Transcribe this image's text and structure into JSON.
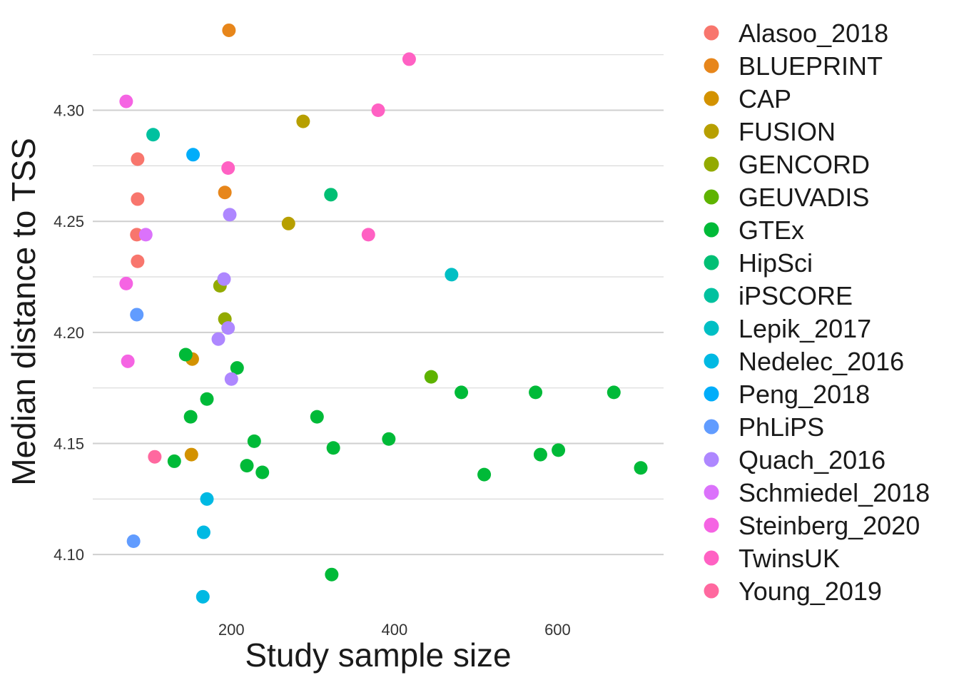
{
  "chart_data": {
    "type": "scatter",
    "xlabel": "Study sample size",
    "ylabel": "Median distance to TSS",
    "xlim": [
      30,
      730
    ],
    "ylim": [
      4.075,
      4.34
    ],
    "x_ticks": [
      200,
      400,
      600
    ],
    "x_tick_labels": [
      "200",
      "400",
      "600"
    ],
    "y_ticks": [
      4.1,
      4.15,
      4.2,
      4.25,
      4.3
    ],
    "y_tick_labels": [
      "4.10",
      "4.15",
      "4.20",
      "4.25",
      "4.30"
    ],
    "legend_position": "right",
    "grid": true,
    "series": [
      {
        "name": "Alasoo_2018",
        "color": "#F8766D",
        "points": [
          [
            85,
            4.278
          ],
          [
            85,
            4.26
          ],
          [
            84,
            4.244
          ],
          [
            85,
            4.232
          ]
        ]
      },
      {
        "name": "BLUEPRINT",
        "color": "#E7861B",
        "points": [
          [
            197,
            4.336
          ],
          [
            192,
            4.263
          ]
        ]
      },
      {
        "name": "CAP",
        "color": "#D39200",
        "points": [
          [
            152,
            4.188
          ],
          [
            151,
            4.145
          ]
        ]
      },
      {
        "name": "FUSION",
        "color": "#B79F00",
        "points": [
          [
            288,
            4.295
          ],
          [
            270,
            4.249
          ]
        ]
      },
      {
        "name": "GENCORD",
        "color": "#93AA00",
        "points": [
          [
            186,
            4.221
          ],
          [
            192,
            4.206
          ]
        ]
      },
      {
        "name": "GEUVADIS",
        "color": "#5EB300",
        "points": [
          [
            445,
            4.18
          ]
        ]
      },
      {
        "name": "GTEx",
        "color": "#00BA38",
        "points": [
          [
            144,
            4.19
          ],
          [
            207,
            4.184
          ],
          [
            170,
            4.17
          ],
          [
            150,
            4.162
          ],
          [
            305,
            4.162
          ],
          [
            228,
            4.151
          ],
          [
            393,
            4.152
          ],
          [
            325,
            4.148
          ],
          [
            130,
            4.142
          ],
          [
            219,
            4.14
          ],
          [
            238,
            4.137
          ],
          [
            482,
            4.173
          ],
          [
            573,
            4.173
          ],
          [
            669,
            4.173
          ],
          [
            579,
            4.145
          ],
          [
            601,
            4.147
          ],
          [
            510,
            4.136
          ],
          [
            702,
            4.139
          ],
          [
            323,
            4.091
          ]
        ]
      },
      {
        "name": "HipSci",
        "color": "#00BF74",
        "points": [
          [
            322,
            4.262
          ]
        ]
      },
      {
        "name": "iPSCORE",
        "color": "#00C19F",
        "points": [
          [
            104,
            4.289
          ]
        ]
      },
      {
        "name": "Lepik_2017",
        "color": "#00BFC4",
        "points": [
          [
            470,
            4.226
          ]
        ]
      },
      {
        "name": "Nedelec_2016",
        "color": "#00B9E3",
        "points": [
          [
            170,
            4.125
          ],
          [
            166,
            4.11
          ],
          [
            165,
            4.081
          ]
        ]
      },
      {
        "name": "Peng_2018",
        "color": "#00ADFA",
        "points": [
          [
            153,
            4.28
          ]
        ]
      },
      {
        "name": "PhLiPS",
        "color": "#619CFF",
        "points": [
          [
            84,
            4.208
          ],
          [
            80,
            4.106
          ]
        ]
      },
      {
        "name": "Quach_2016",
        "color": "#AE87FF",
        "points": [
          [
            198,
            4.253
          ],
          [
            191,
            4.224
          ],
          [
            196,
            4.202
          ],
          [
            184,
            4.197
          ],
          [
            200,
            4.179
          ]
        ]
      },
      {
        "name": "Schmiedel_2018",
        "color": "#DB72FB",
        "points": [
          [
            95,
            4.244
          ]
        ]
      },
      {
        "name": "Steinberg_2020",
        "color": "#F564E3",
        "points": [
          [
            71,
            4.304
          ],
          [
            71,
            4.222
          ],
          [
            73,
            4.187
          ]
        ]
      },
      {
        "name": "TwinsUK",
        "color": "#FF61C3",
        "points": [
          [
            418,
            4.323
          ],
          [
            380,
            4.3
          ],
          [
            196,
            4.274
          ],
          [
            368,
            4.244
          ]
        ]
      },
      {
        "name": "Young_2019",
        "color": "#FF689F",
        "points": [
          [
            106,
            4.144
          ]
        ]
      }
    ]
  }
}
